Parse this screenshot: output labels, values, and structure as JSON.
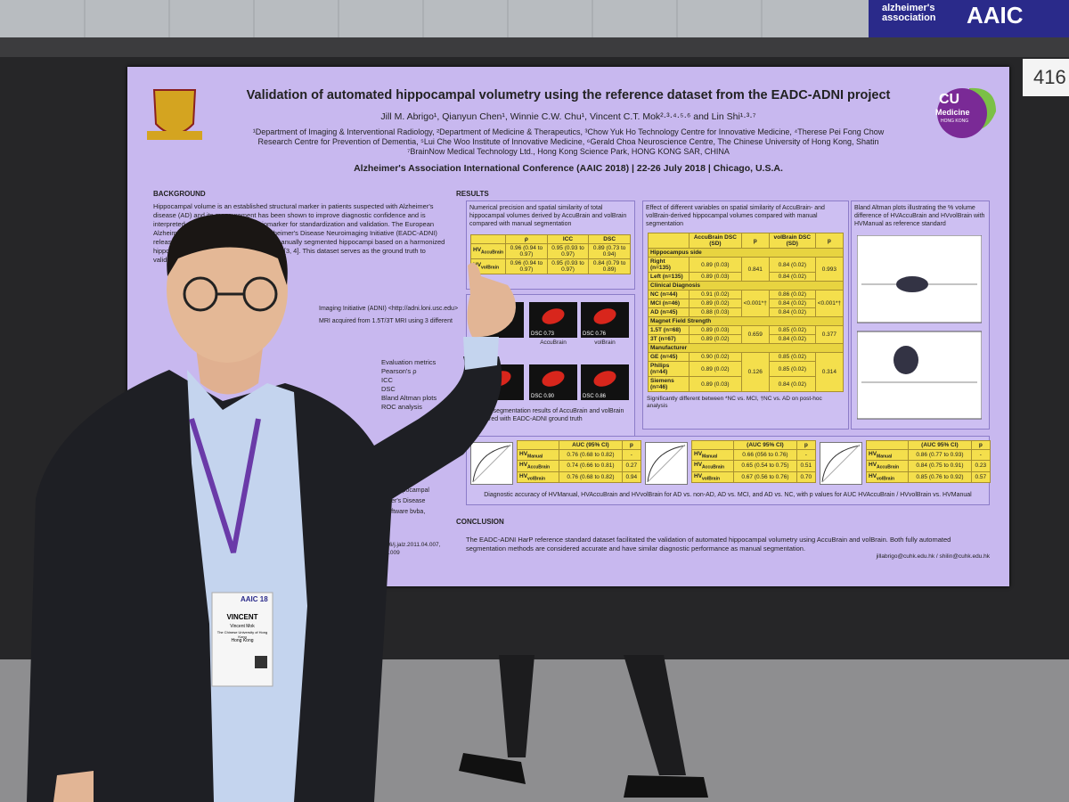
{
  "banner": {
    "org": "alzheimer's association",
    "event": "AAIC"
  },
  "booth_number": "416",
  "poster": {
    "title": "Validation of automated hippocampal volumetry using the reference dataset from the EADC-ADNI project",
    "authors": "Jill M. Abrigo¹, Qianyun Chen¹, Winnie C.W. Chu¹, Vincent C.T. Mok²·³·⁴·⁵·⁶ and Lin Shi¹·³·⁷",
    "affiliations": [
      "¹Department of Imaging & Interventional Radiology, ²Department of Medicine & Therapeutics, ³Chow Yuk Ho Technology Centre for Innovative Medicine, ⁴Therese Pei Fong Chow",
      "Research Centre for Prevention of Dementia, ⁵Lui Che Woo Institute of Innovative Medicine, ⁶Gerald Choa Neuroscience Centre, The Chinese University of Hong Kong, Shatin",
      "⁷BrainNow Medical Technology Ltd., Hong Kong Science Park, HONG KONG SAR, CHINA"
    ],
    "conference": "Alzheimer's Association International Conference (AAIC 2018) | 22-26 July 2018 | Chicago, U.S.A.",
    "logo_right": {
      "line1": "CU",
      "line2": "Medicine",
      "line3": "HONG KONG"
    },
    "background": {
      "heading": "BACKGROUND",
      "text": "Hippocampal volume is an established structural marker in patients suspected with Alzheimer's disease (AD) and its measurement has been shown to improve diagnostic confidence and is interpreted as an initial AD imaging biomarker for standardization and validation. The European Alzheimer's Disease Consortium and Alzheimer's Disease Neuroimaging Initiative (EADC-ADNI) released a reference standard dataset of manually segmented hippocampi based on a harmonized hippocampal harmonization protocol (HarP) [3, 4]. This dataset serves as the ground truth to validate automated algorithms."
    },
    "methods": {
      "adni": "Imaging Initiative (ADNI) <http://adni.loni.usc.edu>",
      "mri": "MRI acquired from 1.5T/3T MRI using 3 different",
      "metrics": [
        "Evaluation metrics",
        "Pearson's ρ",
        "ICC",
        "DSC",
        "Bland Altman plots",
        "ROC analysis"
      ],
      "notes": [
        "efficient, HV: hippocampal",
        "AD: Alzheimer's Disease",
        "MedCalc Software bvba,"
      ],
      "refs": [
        "et al. 10.1016/j.jalz.2011.04.007,",
        "jalz.2014.02.009"
      ]
    },
    "results": {
      "heading": "RESULTS",
      "table1": {
        "caption": "Numerical precision and spatial similarity of total hippocampal volumes derived by AccuBrain and volBrain compared with manual segmentation",
        "headers": [
          "ρ",
          "ICC",
          "DSC"
        ],
        "rows": [
          {
            "label": {
              "base": "HV",
              "sub": "AccuBrain"
            },
            "cells": [
              "0.96 (0.94 to 0.97)",
              "0.95 (0.93 to 0.97)",
              "0.89 (0.73 to 0.94)"
            ]
          },
          {
            "label": {
              "base": "HV",
              "sub": "volBrain"
            },
            "cells": [
              "0.96 (0.94 to 0.97)",
              "0.95 (0.93 to 0.97)",
              "0.84 (0.79 to 0.89)"
            ]
          }
        ]
      },
      "images": {
        "labels": [
          "DSC 0.73",
          "DSC 0.76",
          "DSC 0.90",
          "DSC 0.86"
        ],
        "columns": [
          "AccuBrain",
          "volBrain"
        ],
        "caption": "Sample segmentation results of AccuBrain and volBrain compared with EADC-ADNI ground truth"
      },
      "table2": {
        "caption": "Effect of different variables on spatial similarity of AccuBrain- and volBrain-derived hippocampal volumes compared with manual segmentation",
        "headers": [
          "AccuBrain DSC (SD)",
          "p",
          "volBrain DSC (SD)",
          "p"
        ],
        "groups": [
          {
            "name": "Hippocampus side",
            "rows": [
              [
                "Right (n=135)",
                "0.89 (0.03)",
                "0.84 (0.02)"
              ],
              [
                "Left (n=135)",
                "0.89 (0.03)",
                "0.84 (0.02)"
              ]
            ],
            "p": [
              "0.841",
              "0.993"
            ]
          },
          {
            "name": "Clinical Diagnosis",
            "rows": [
              [
                "NC (n=44)",
                "0.91 (0.02)",
                "0.86 (0.02)"
              ],
              [
                "MCI (n=46)",
                "0.89 (0.02)",
                "0.84 (0.02)"
              ],
              [
                "AD (n=45)",
                "0.88 (0.03)",
                "0.84 (0.02)"
              ]
            ],
            "p": [
              "<0.001*†",
              "<0.001*†"
            ]
          },
          {
            "name": "Magnet Field Strength",
            "rows": [
              [
                "1.5T (n=68)",
                "0.89 (0.03)",
                "0.85 (0.02)"
              ],
              [
                "3T (n=67)",
                "0.89 (0.02)",
                "0.84 (0.02)"
              ]
            ],
            "p": [
              "0.659",
              "0.377"
            ]
          },
          {
            "name": "Manufacturer",
            "rows": [
              [
                "GE (n=45)",
                "0.90 (0.02)",
                "0.85 (0.02)"
              ],
              [
                "Philips (n=44)",
                "0.89 (0.02)",
                "0.85 (0.02)"
              ],
              [
                "Siemens (n=46)",
                "0.89 (0.03)",
                "0.84 (0.02)"
              ]
            ],
            "p": [
              "0.126",
              "0.314"
            ]
          }
        ],
        "footnote": "Significantly different between *NC vs. MCI, †NC vs. AD on post-hoc analysis"
      },
      "bland_altman_caption": "Bland Altman plots illustrating the % volume difference of HVAccuBrain and HVvolBrain with HVManual as reference standard",
      "auc_tables": [
        {
          "headers": [
            "AUC (95% CI)",
            "p"
          ],
          "rows": [
            {
              "label": {
                "base": "HV",
                "sub": "Manual"
              },
              "cells": [
                "0.76 (0.68 to 0.82)",
                "-"
              ]
            },
            {
              "label": {
                "base": "HV",
                "sub": "AccuBrain"
              },
              "cells": [
                "0.74 (0.66 to 0.81)",
                "0.27"
              ]
            },
            {
              "label": {
                "base": "HV",
                "sub": "volBrain"
              },
              "cells": [
                "0.76 (0.68 to 0.82)",
                "0.94"
              ]
            }
          ]
        },
        {
          "headers": [
            "(AUC 95% CI)",
            "p"
          ],
          "rows": [
            {
              "label": {
                "base": "HV",
                "sub": "Manual"
              },
              "cells": [
                "0.66 (056 to 0.76)",
                "-"
              ]
            },
            {
              "label": {
                "base": "HV",
                "sub": "AccuBrain"
              },
              "cells": [
                "0.65 (0.54 to 0.75)",
                "0.51"
              ]
            },
            {
              "label": {
                "base": "HV",
                "sub": "volBrain"
              },
              "cells": [
                "0.67 (0.56 to 0.76)",
                "0.70"
              ]
            }
          ]
        },
        {
          "headers": [
            "(AUC 95% CI)",
            "p"
          ],
          "rows": [
            {
              "label": {
                "base": "HV",
                "sub": "Manual"
              },
              "cells": [
                "0.86 (0.77 to 0.93)",
                "-"
              ]
            },
            {
              "label": {
                "base": "HV",
                "sub": "AccuBrain"
              },
              "cells": [
                "0.84 (0.75 to 0.91)",
                "0.23"
              ]
            },
            {
              "label": {
                "base": "HV",
                "sub": "volBrain"
              },
              "cells": [
                "0.85 (0.76 to 0.92)",
                "0.57"
              ]
            }
          ]
        }
      ],
      "auc_caption": "Diagnostic accuracy of HVManual, HVAccuBrain and HVvolBrain for AD vs. non-AD, AD vs. MCI, and AD vs. NC, with p values for AUC HVAccuBrain / HVvolBrain vs. HVManual"
    },
    "conclusion": {
      "heading": "CONCLUSION",
      "text": "The EADC-ADNI HarP reference standard dataset facilitated the validation of automated hippocampal volumetry using AccuBrain and volBrain. Both fully automated segmentation methods are considered accurate and have similar diagnostic performance as manual segmentation."
    },
    "contacts": "jillabrigo@cuhk.edu.hk / shilin@cuhk.edu.hk"
  },
  "badge": {
    "event": "AAIC 18",
    "name": "VINCENT",
    "full_name": "Vincent Mok",
    "org": "The Chinese University of Hong Kong",
    "city": "Hong Kong"
  }
}
